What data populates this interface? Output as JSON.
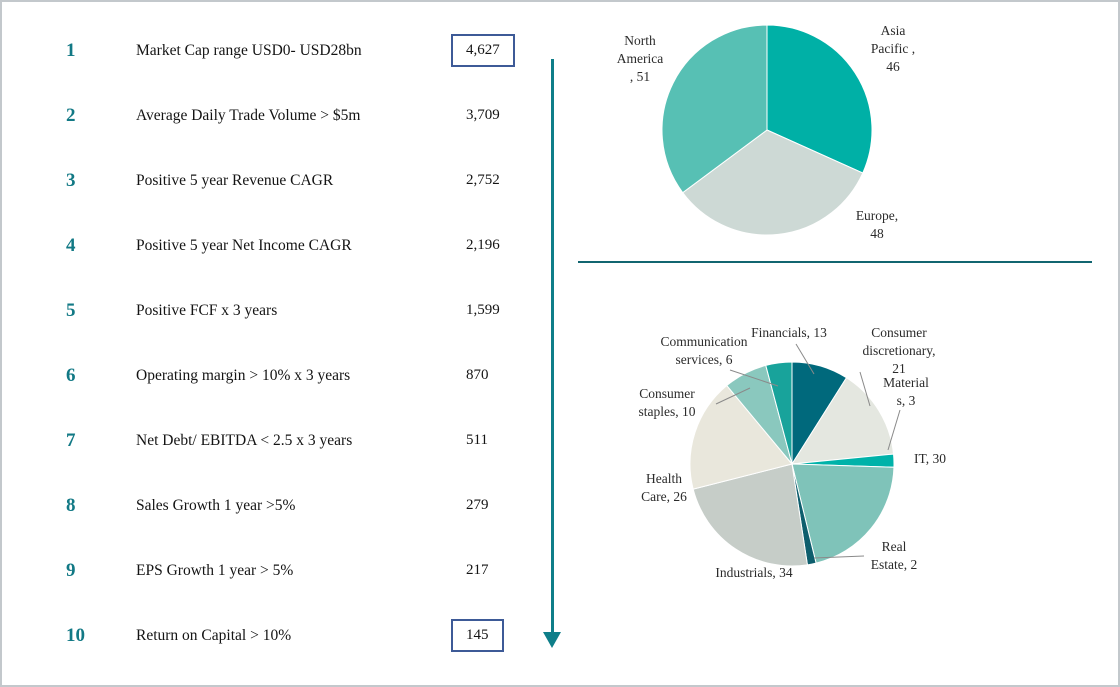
{
  "theme": {
    "accent_teal": "#0e7e89",
    "step_number_color": "#127985",
    "box_border_color": "#3d5a97",
    "divider_color": "#116570"
  },
  "funnel": {
    "rows": [
      {
        "num": "1",
        "label": "Market Cap range USD0- USD28bn",
        "count": "4,627",
        "boxed": true
      },
      {
        "num": "2",
        "label": "Average Daily Trade Volume > $5m",
        "count": "3,709",
        "boxed": false
      },
      {
        "num": "3",
        "label": "Positive 5 year Revenue CAGR",
        "count": "2,752",
        "boxed": false
      },
      {
        "num": "4",
        "label": "Positive 5 year Net Income CAGR",
        "count": "2,196",
        "boxed": false
      },
      {
        "num": "5",
        "label": "Positive FCF x 3 years",
        "count": "1,599",
        "boxed": false
      },
      {
        "num": "6",
        "label": "Operating margin > 10% x 3 years",
        "count": "870",
        "boxed": false
      },
      {
        "num": "7",
        "label": "Net Debt/ EBITDA < 2.5 x 3 years",
        "count": "511",
        "boxed": false
      },
      {
        "num": "8",
        "label": "Sales Growth 1 year >5%",
        "count": "279",
        "boxed": false
      },
      {
        "num": "9",
        "label": "EPS Growth 1 year > 5%",
        "count": "217",
        "boxed": false
      },
      {
        "num": "10",
        "label": "Return on Capital > 10%",
        "count": "145",
        "boxed": true
      }
    ]
  },
  "chart_data": [
    {
      "type": "pie",
      "name": "region-breakdown",
      "labels": [
        "Asia Pacific",
        "Europe",
        "North America"
      ],
      "values": [
        46,
        48,
        51
      ],
      "colors": [
        "#00b0a6",
        "#cdd9d5",
        "#57c0b4"
      ],
      "start_angle_deg": -90,
      "direction": "clockwise",
      "legend_position": "callouts"
    },
    {
      "type": "pie",
      "name": "sector-breakdown",
      "labels": [
        "Financials",
        "Consumer discretionary",
        "Materials",
        "IT",
        "Real Estate",
        "Industrials",
        "Health Care",
        "Consumer staples",
        "Communication services"
      ],
      "values": [
        13,
        21,
        3,
        30,
        2,
        34,
        26,
        10,
        6
      ],
      "colors": [
        "#00697c",
        "#e4e7e0",
        "#00b2a9",
        "#7fc3b9",
        "#0e5e6d",
        "#c6cdc8",
        "#e9e7dc",
        "#8ac8be",
        "#18a39b"
      ],
      "start_angle_deg": -90,
      "direction": "clockwise",
      "legend_position": "callouts"
    }
  ],
  "callouts": {
    "geo": [
      {
        "name": "north-america",
        "text": "North\nAmerica\n, 51"
      },
      {
        "name": "asia-pacific",
        "text": "Asia\nPacific ,\n46"
      },
      {
        "name": "europe",
        "text": "Europe,\n48"
      }
    ],
    "sector": [
      {
        "name": "communication-services",
        "text": "Communication\nservices, 6"
      },
      {
        "name": "financials",
        "text": "Financials, 13"
      },
      {
        "name": "consumer-discretionary",
        "text": "Consumer\ndiscretionary,\n21"
      },
      {
        "name": "materials",
        "text": "Material\ns, 3"
      },
      {
        "name": "it",
        "text": "IT, 30"
      },
      {
        "name": "real-estate",
        "text": "Real\nEstate, 2"
      },
      {
        "name": "industrials",
        "text": "Industrials, 34"
      },
      {
        "name": "health-care",
        "text": "Health\nCare, 26"
      },
      {
        "name": "consumer-staples",
        "text": "Consumer\nstaples, 10"
      }
    ]
  }
}
